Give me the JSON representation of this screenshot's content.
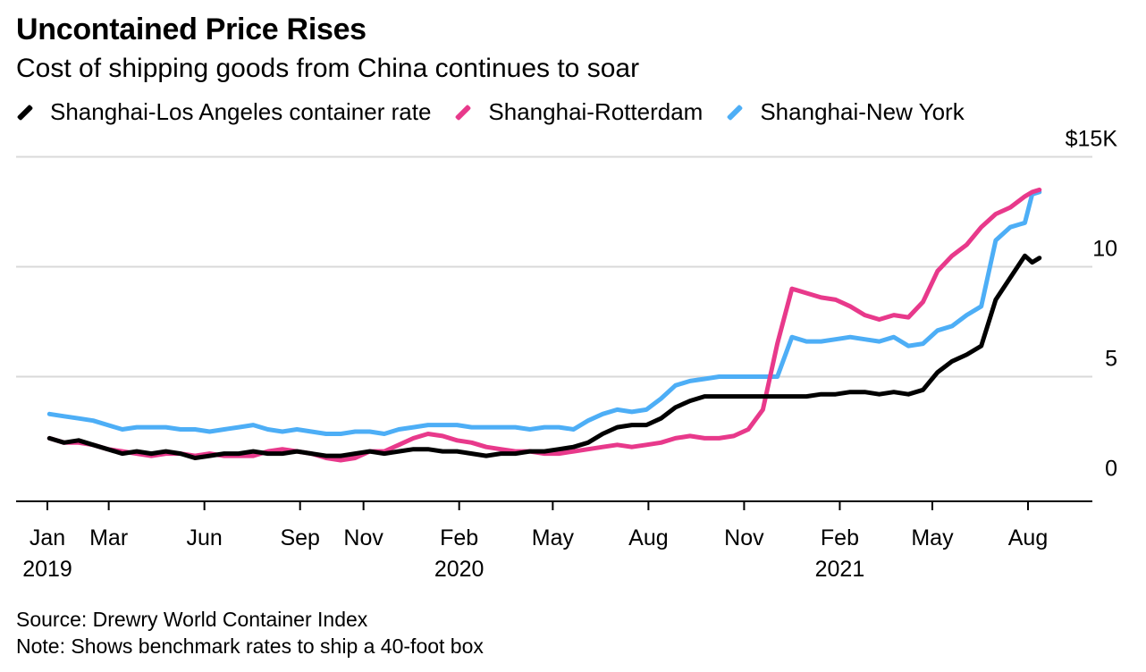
{
  "title": "Uncontained Price Rises",
  "subtitle": "Cost of shipping goods from China continues to soar",
  "source": "Source: Drewry World Container Index",
  "note": "Note: Shows benchmark rates to ship a 40-foot box",
  "chart_data": {
    "type": "line",
    "y_axis": {
      "min": 0,
      "max": 15,
      "ticks": [
        0,
        5,
        10,
        15
      ],
      "tick_labels": [
        "0",
        "5",
        "10",
        "$15K"
      ],
      "units": "thousand USD",
      "position": "right"
    },
    "x_axis": {
      "ticks": [
        {
          "date": "2019-01-01",
          "label": "Jan",
          "year": "2019"
        },
        {
          "date": "2019-03-01",
          "label": "Mar"
        },
        {
          "date": "2019-06-01",
          "label": "Jun"
        },
        {
          "date": "2019-09-01",
          "label": "Sep"
        },
        {
          "date": "2019-11-01",
          "label": "Nov"
        },
        {
          "date": "2020-02-01",
          "label": "Feb",
          "year": "2020"
        },
        {
          "date": "2020-05-01",
          "label": "May"
        },
        {
          "date": "2020-08-01",
          "label": "Aug"
        },
        {
          "date": "2020-11-01",
          "label": "Nov"
        },
        {
          "date": "2021-02-01",
          "label": "Feb",
          "year": "2021"
        },
        {
          "date": "2021-05-01",
          "label": "May"
        },
        {
          "date": "2021-08-01",
          "label": "Aug"
        }
      ]
    },
    "grid": true,
    "legend_position": "top-left",
    "series": [
      {
        "name": "Shanghai-Los Angeles container rate",
        "color": "#000000",
        "points": [
          [
            "2019-01-03",
            2.2
          ],
          [
            "2019-01-17",
            2.0
          ],
          [
            "2019-01-31",
            2.1
          ],
          [
            "2019-02-14",
            1.9
          ],
          [
            "2019-02-28",
            1.7
          ],
          [
            "2019-03-14",
            1.5
          ],
          [
            "2019-03-28",
            1.6
          ],
          [
            "2019-04-11",
            1.5
          ],
          [
            "2019-04-25",
            1.6
          ],
          [
            "2019-05-09",
            1.5
          ],
          [
            "2019-05-23",
            1.3
          ],
          [
            "2019-06-06",
            1.4
          ],
          [
            "2019-06-20",
            1.5
          ],
          [
            "2019-07-04",
            1.5
          ],
          [
            "2019-07-18",
            1.6
          ],
          [
            "2019-08-01",
            1.5
          ],
          [
            "2019-08-15",
            1.5
          ],
          [
            "2019-08-29",
            1.6
          ],
          [
            "2019-09-12",
            1.5
          ],
          [
            "2019-09-26",
            1.4
          ],
          [
            "2019-10-10",
            1.4
          ],
          [
            "2019-10-24",
            1.5
          ],
          [
            "2019-11-07",
            1.6
          ],
          [
            "2019-11-21",
            1.5
          ],
          [
            "2019-12-05",
            1.6
          ],
          [
            "2019-12-19",
            1.7
          ],
          [
            "2020-01-02",
            1.7
          ],
          [
            "2020-01-16",
            1.6
          ],
          [
            "2020-01-30",
            1.6
          ],
          [
            "2020-02-13",
            1.5
          ],
          [
            "2020-02-27",
            1.4
          ],
          [
            "2020-03-12",
            1.5
          ],
          [
            "2020-03-26",
            1.5
          ],
          [
            "2020-04-09",
            1.6
          ],
          [
            "2020-04-23",
            1.6
          ],
          [
            "2020-05-07",
            1.7
          ],
          [
            "2020-05-21",
            1.8
          ],
          [
            "2020-06-04",
            2.0
          ],
          [
            "2020-06-18",
            2.4
          ],
          [
            "2020-07-02",
            2.7
          ],
          [
            "2020-07-16",
            2.8
          ],
          [
            "2020-07-30",
            2.8
          ],
          [
            "2020-08-13",
            3.1
          ],
          [
            "2020-08-27",
            3.6
          ],
          [
            "2020-09-10",
            3.9
          ],
          [
            "2020-09-24",
            4.1
          ],
          [
            "2020-10-08",
            4.1
          ],
          [
            "2020-10-22",
            4.1
          ],
          [
            "2020-11-05",
            4.1
          ],
          [
            "2020-11-19",
            4.1
          ],
          [
            "2020-12-03",
            4.1
          ],
          [
            "2020-12-17",
            4.1
          ],
          [
            "2020-12-31",
            4.1
          ],
          [
            "2021-01-14",
            4.2
          ],
          [
            "2021-01-28",
            4.2
          ],
          [
            "2021-02-11",
            4.3
          ],
          [
            "2021-02-25",
            4.3
          ],
          [
            "2021-03-11",
            4.2
          ],
          [
            "2021-03-25",
            4.3
          ],
          [
            "2021-04-08",
            4.2
          ],
          [
            "2021-04-22",
            4.4
          ],
          [
            "2021-05-06",
            5.2
          ],
          [
            "2021-05-20",
            5.7
          ],
          [
            "2021-06-03",
            6.0
          ],
          [
            "2021-06-17",
            6.4
          ],
          [
            "2021-07-01",
            8.5
          ],
          [
            "2021-07-15",
            9.5
          ],
          [
            "2021-07-29",
            10.5
          ],
          [
            "2021-08-05",
            10.2
          ],
          [
            "2021-08-12",
            10.4
          ]
        ]
      },
      {
        "name": "Shanghai-Rotterdam",
        "color": "#e8398b",
        "points": [
          [
            "2019-01-03",
            2.2
          ],
          [
            "2019-01-17",
            2.0
          ],
          [
            "2019-01-31",
            2.0
          ],
          [
            "2019-02-14",
            1.9
          ],
          [
            "2019-02-28",
            1.7
          ],
          [
            "2019-03-14",
            1.6
          ],
          [
            "2019-03-28",
            1.5
          ],
          [
            "2019-04-11",
            1.4
          ],
          [
            "2019-04-25",
            1.5
          ],
          [
            "2019-05-09",
            1.5
          ],
          [
            "2019-05-23",
            1.4
          ],
          [
            "2019-06-06",
            1.5
          ],
          [
            "2019-06-20",
            1.4
          ],
          [
            "2019-07-04",
            1.4
          ],
          [
            "2019-07-18",
            1.4
          ],
          [
            "2019-08-01",
            1.6
          ],
          [
            "2019-08-15",
            1.7
          ],
          [
            "2019-08-29",
            1.6
          ],
          [
            "2019-09-12",
            1.5
          ],
          [
            "2019-09-26",
            1.3
          ],
          [
            "2019-10-10",
            1.2
          ],
          [
            "2019-10-24",
            1.3
          ],
          [
            "2019-11-07",
            1.6
          ],
          [
            "2019-11-21",
            1.6
          ],
          [
            "2019-12-05",
            1.9
          ],
          [
            "2019-12-19",
            2.2
          ],
          [
            "2020-01-02",
            2.4
          ],
          [
            "2020-01-16",
            2.3
          ],
          [
            "2020-01-30",
            2.1
          ],
          [
            "2020-02-13",
            2.0
          ],
          [
            "2020-02-27",
            1.8
          ],
          [
            "2020-03-12",
            1.7
          ],
          [
            "2020-03-26",
            1.6
          ],
          [
            "2020-04-09",
            1.6
          ],
          [
            "2020-04-23",
            1.5
          ],
          [
            "2020-05-07",
            1.5
          ],
          [
            "2020-05-21",
            1.6
          ],
          [
            "2020-06-04",
            1.7
          ],
          [
            "2020-06-18",
            1.8
          ],
          [
            "2020-07-02",
            1.9
          ],
          [
            "2020-07-16",
            1.8
          ],
          [
            "2020-07-30",
            1.9
          ],
          [
            "2020-08-13",
            2.0
          ],
          [
            "2020-08-27",
            2.2
          ],
          [
            "2020-09-10",
            2.3
          ],
          [
            "2020-09-24",
            2.2
          ],
          [
            "2020-10-08",
            2.2
          ],
          [
            "2020-10-22",
            2.3
          ],
          [
            "2020-11-05",
            2.6
          ],
          [
            "2020-11-19",
            3.5
          ],
          [
            "2020-12-03",
            6.5
          ],
          [
            "2020-12-17",
            9.0
          ],
          [
            "2020-12-31",
            8.8
          ],
          [
            "2021-01-14",
            8.6
          ],
          [
            "2021-01-28",
            8.5
          ],
          [
            "2021-02-11",
            8.2
          ],
          [
            "2021-02-25",
            7.8
          ],
          [
            "2021-03-11",
            7.6
          ],
          [
            "2021-03-25",
            7.8
          ],
          [
            "2021-04-08",
            7.7
          ],
          [
            "2021-04-22",
            8.4
          ],
          [
            "2021-05-06",
            9.8
          ],
          [
            "2021-05-20",
            10.5
          ],
          [
            "2021-06-03",
            11.0
          ],
          [
            "2021-06-17",
            11.8
          ],
          [
            "2021-07-01",
            12.4
          ],
          [
            "2021-07-15",
            12.7
          ],
          [
            "2021-07-29",
            13.2
          ],
          [
            "2021-08-05",
            13.4
          ],
          [
            "2021-08-12",
            13.5
          ]
        ]
      },
      {
        "name": "Shanghai-New York",
        "color": "#4daef6",
        "points": [
          [
            "2019-01-03",
            3.3
          ],
          [
            "2019-01-17",
            3.2
          ],
          [
            "2019-01-31",
            3.1
          ],
          [
            "2019-02-14",
            3.0
          ],
          [
            "2019-02-28",
            2.8
          ],
          [
            "2019-03-14",
            2.6
          ],
          [
            "2019-03-28",
            2.7
          ],
          [
            "2019-04-11",
            2.7
          ],
          [
            "2019-04-25",
            2.7
          ],
          [
            "2019-05-09",
            2.6
          ],
          [
            "2019-05-23",
            2.6
          ],
          [
            "2019-06-06",
            2.5
          ],
          [
            "2019-06-20",
            2.6
          ],
          [
            "2019-07-04",
            2.7
          ],
          [
            "2019-07-18",
            2.8
          ],
          [
            "2019-08-01",
            2.6
          ],
          [
            "2019-08-15",
            2.5
          ],
          [
            "2019-08-29",
            2.6
          ],
          [
            "2019-09-12",
            2.5
          ],
          [
            "2019-09-26",
            2.4
          ],
          [
            "2019-10-10",
            2.4
          ],
          [
            "2019-10-24",
            2.5
          ],
          [
            "2019-11-07",
            2.5
          ],
          [
            "2019-11-21",
            2.4
          ],
          [
            "2019-12-05",
            2.6
          ],
          [
            "2019-12-19",
            2.7
          ],
          [
            "2020-01-02",
            2.8
          ],
          [
            "2020-01-16",
            2.8
          ],
          [
            "2020-01-30",
            2.8
          ],
          [
            "2020-02-13",
            2.7
          ],
          [
            "2020-02-27",
            2.7
          ],
          [
            "2020-03-12",
            2.7
          ],
          [
            "2020-03-26",
            2.7
          ],
          [
            "2020-04-09",
            2.6
          ],
          [
            "2020-04-23",
            2.7
          ],
          [
            "2020-05-07",
            2.7
          ],
          [
            "2020-05-21",
            2.6
          ],
          [
            "2020-06-04",
            3.0
          ],
          [
            "2020-06-18",
            3.3
          ],
          [
            "2020-07-02",
            3.5
          ],
          [
            "2020-07-16",
            3.4
          ],
          [
            "2020-07-30",
            3.5
          ],
          [
            "2020-08-13",
            4.0
          ],
          [
            "2020-08-27",
            4.6
          ],
          [
            "2020-09-10",
            4.8
          ],
          [
            "2020-09-24",
            4.9
          ],
          [
            "2020-10-08",
            5.0
          ],
          [
            "2020-10-22",
            5.0
          ],
          [
            "2020-11-05",
            5.0
          ],
          [
            "2020-11-19",
            5.0
          ],
          [
            "2020-12-03",
            5.0
          ],
          [
            "2020-12-17",
            6.8
          ],
          [
            "2020-12-31",
            6.6
          ],
          [
            "2021-01-14",
            6.6
          ],
          [
            "2021-01-28",
            6.7
          ],
          [
            "2021-02-11",
            6.8
          ],
          [
            "2021-02-25",
            6.7
          ],
          [
            "2021-03-11",
            6.6
          ],
          [
            "2021-03-25",
            6.8
          ],
          [
            "2021-04-08",
            6.4
          ],
          [
            "2021-04-22",
            6.5
          ],
          [
            "2021-05-06",
            7.1
          ],
          [
            "2021-05-20",
            7.3
          ],
          [
            "2021-06-03",
            7.8
          ],
          [
            "2021-06-17",
            8.2
          ],
          [
            "2021-07-01",
            11.2
          ],
          [
            "2021-07-15",
            11.8
          ],
          [
            "2021-07-29",
            12.0
          ],
          [
            "2021-08-05",
            13.3
          ],
          [
            "2021-08-12",
            13.4
          ]
        ]
      }
    ]
  }
}
